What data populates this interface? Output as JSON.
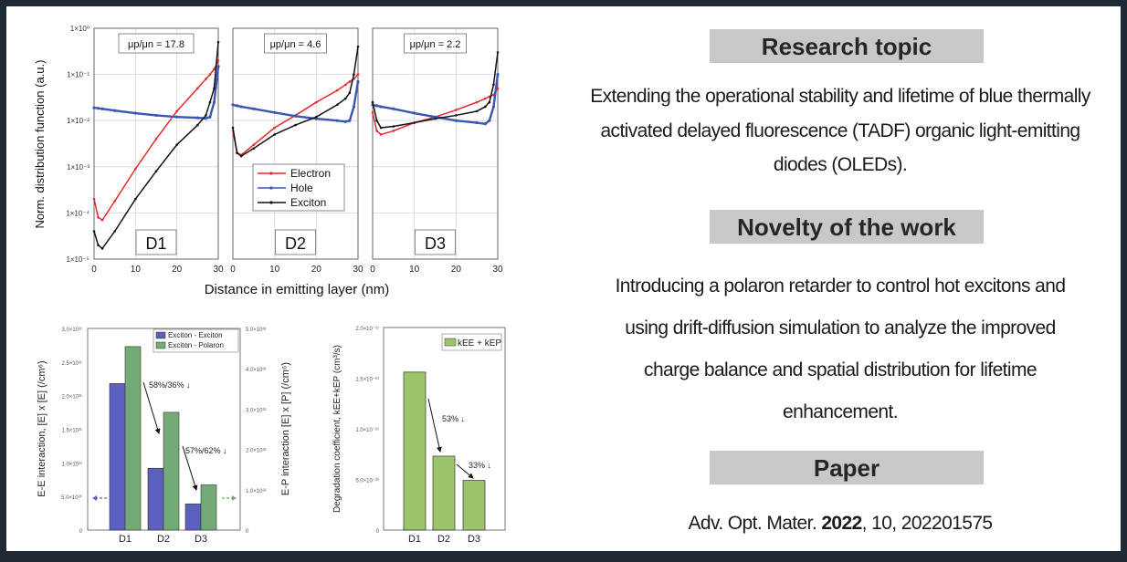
{
  "colors": {
    "frame": "#1f2a36",
    "electron": "#e8262d",
    "hole": "#3a56b5",
    "exciton": "#111111",
    "bar_ee": "#5b5fbd",
    "bar_ep": "#72ab78",
    "bar_k": "#9cc46b",
    "header_bg": "#c8c8c8"
  },
  "figure": {
    "top_panel": {
      "ylabel": "Norm. distribution function (a.u.)",
      "xlabel": "Distance in emitting layer (nm)",
      "y_ticks": [
        "1×10⁰",
        "1×10⁻¹",
        "1×10⁻²",
        "1×10⁻³",
        "1×10⁻⁴",
        "1×10⁻⁵"
      ],
      "x_ticks": [
        "0",
        "10",
        "20",
        "30"
      ],
      "legend": [
        "Electron",
        "Hole",
        "Exciton"
      ],
      "plots": [
        {
          "device": "D1",
          "ratio_label": "μp/μn = 17.8"
        },
        {
          "device": "D2",
          "ratio_label": "μp/μn = 4.6"
        },
        {
          "device": "D3",
          "ratio_label": "μp/μn = 2.2"
        }
      ]
    },
    "bar_left": {
      "ylabel_left": "E-E interaction, [E] x [E] (/cm⁶)",
      "ylabel_right": "E-P interaction [E] x [P] (/cm⁶)",
      "y_ticks_left": [
        "3.0×10³¹",
        "2.5×10³¹",
        "2.0×10³¹",
        "1.5×10³¹",
        "1.0×10³¹",
        "5.0×10³⁰",
        "0"
      ],
      "y_ticks_right": [
        "5.0×10³²",
        "4.0×10³²",
        "3.0×10³²",
        "2.0×10³²",
        "1.0×10³²",
        "0"
      ],
      "legend": [
        "Exciton - Exciton",
        "Exciton - Polaron"
      ],
      "annotations": [
        "58%/36% ↓",
        "57%/62% ↓"
      ]
    },
    "bar_right": {
      "ylabel": "Degradation coefficient, kEE+kEP (cm³/s)",
      "y_ticks": [
        "2.0×10⁻²¹",
        "1.5×10⁻²¹",
        "1.0×10⁻²¹",
        "5.0×10⁻²²",
        "0"
      ],
      "legend": "kEE + kEP",
      "annotations": [
        "53% ↓",
        "33% ↓"
      ]
    }
  },
  "chart_data": [
    {
      "type": "line",
      "title": "D1 (μp/μn = 17.8)",
      "xlabel": "Distance in emitting layer (nm)",
      "ylabel": "Norm. distribution function (a.u.)",
      "yscale": "log",
      "ylim": [
        1e-05,
        1
      ],
      "xlim": [
        0,
        30
      ],
      "grid": true,
      "x": [
        0,
        1,
        2,
        5,
        10,
        15,
        20,
        25,
        27,
        28,
        29,
        30
      ],
      "series": [
        {
          "name": "Electron",
          "values": [
            0.0002,
            8e-05,
            7e-05,
            0.00018,
            0.0009,
            0.004,
            0.016,
            0.05,
            0.08,
            0.1,
            0.13,
            0.2
          ]
        },
        {
          "name": "Hole",
          "values": [
            0.019,
            0.0185,
            0.018,
            0.0165,
            0.0145,
            0.013,
            0.012,
            0.0115,
            0.0112,
            0.012,
            0.025,
            0.15
          ]
        },
        {
          "name": "Exciton",
          "values": [
            4e-05,
            2e-05,
            1.7e-05,
            4e-05,
            0.0002,
            0.0008,
            0.003,
            0.008,
            0.013,
            0.025,
            0.05,
            0.5
          ]
        }
      ]
    },
    {
      "type": "line",
      "title": "D2 (μp/μn = 4.6)",
      "xlabel": "Distance in emitting layer (nm)",
      "yscale": "log",
      "ylim": [
        1e-05,
        1
      ],
      "xlim": [
        0,
        30
      ],
      "grid": true,
      "x": [
        0,
        1,
        2,
        5,
        10,
        15,
        20,
        25,
        27,
        28,
        29,
        30
      ],
      "series": [
        {
          "name": "Electron",
          "values": [
            0.006,
            0.002,
            0.0018,
            0.003,
            0.007,
            0.013,
            0.025,
            0.045,
            0.06,
            0.07,
            0.08,
            0.1
          ]
        },
        {
          "name": "Hole",
          "values": [
            0.022,
            0.021,
            0.02,
            0.018,
            0.015,
            0.0125,
            0.011,
            0.01,
            0.0095,
            0.01,
            0.02,
            0.07
          ]
        },
        {
          "name": "Exciton",
          "values": [
            0.007,
            0.002,
            0.0017,
            0.0025,
            0.005,
            0.008,
            0.012,
            0.022,
            0.03,
            0.04,
            0.1,
            0.4
          ]
        }
      ]
    },
    {
      "type": "line",
      "title": "D3 (μp/μn = 2.2)",
      "xlabel": "Distance in emitting layer (nm)",
      "yscale": "log",
      "ylim": [
        1e-05,
        1
      ],
      "xlim": [
        0,
        30
      ],
      "grid": true,
      "x": [
        0,
        1,
        2,
        5,
        10,
        15,
        20,
        25,
        27,
        28,
        29,
        30
      ],
      "series": [
        {
          "name": "Electron",
          "values": [
            0.015,
            0.006,
            0.005,
            0.006,
            0.009,
            0.012,
            0.017,
            0.025,
            0.03,
            0.033,
            0.036,
            0.05
          ]
        },
        {
          "name": "Hole",
          "values": [
            0.022,
            0.021,
            0.02,
            0.018,
            0.0145,
            0.012,
            0.01,
            0.009,
            0.0085,
            0.01,
            0.02,
            0.1
          ]
        },
        {
          "name": "Exciton",
          "values": [
            0.025,
            0.01,
            0.007,
            0.0075,
            0.009,
            0.011,
            0.013,
            0.016,
            0.02,
            0.025,
            0.06,
            0.3
          ]
        }
      ]
    },
    {
      "type": "bar",
      "categories": [
        "D1",
        "D2",
        "D3"
      ],
      "series": [
        {
          "name": "Exciton - Exciton",
          "axis": "left",
          "values": [
            2.18e+31,
            9.2e+30,
            3.9e+30
          ]
        },
        {
          "name": "Exciton - Polaron",
          "axis": "right",
          "values": [
            4.55e+32,
            2.92e+32,
            1.12e+32
          ]
        }
      ],
      "ylabel": "E-E interaction, [E] x [E] (/cm⁶)",
      "ylabel_right": "E-P interaction [E] x [P] (/cm⁶)",
      "ylim": [
        0,
        3e+31
      ],
      "ylim_right": [
        0,
        5e+32
      ],
      "annotations": [
        "58%/36% ↓",
        "57%/62% ↓"
      ]
    },
    {
      "type": "bar",
      "categories": [
        "D1",
        "D2",
        "D3"
      ],
      "series": [
        {
          "name": "kEE + kEP",
          "values": [
            1.56e-21,
            7.3e-22,
            4.9e-22
          ]
        }
      ],
      "ylabel": "Degradation coefficient, kEE+kEP (cm³/s)",
      "ylim": [
        0,
        2e-21
      ],
      "annotations": [
        "53% ↓",
        "33% ↓"
      ]
    }
  ],
  "info": {
    "research_topic": {
      "heading": "Research topic",
      "lines": [
        "Extending the operational stability and lifetime of blue thermally",
        "activated delayed fluorescence (TADF) organic light-emitting",
        "diodes (OLEDs)."
      ]
    },
    "novelty": {
      "heading": "Novelty of the work",
      "lines": [
        "Introducing a polaron retarder to control hot excitons and",
        "using drift-diffusion simulation to analyze the improved",
        "charge balance and spatial distribution for lifetime",
        "enhancement."
      ]
    },
    "paper": {
      "heading": "Paper",
      "journal": "Adv. Opt. Mater.",
      "year": "2022",
      "rest": ", 10, 202201575"
    }
  }
}
